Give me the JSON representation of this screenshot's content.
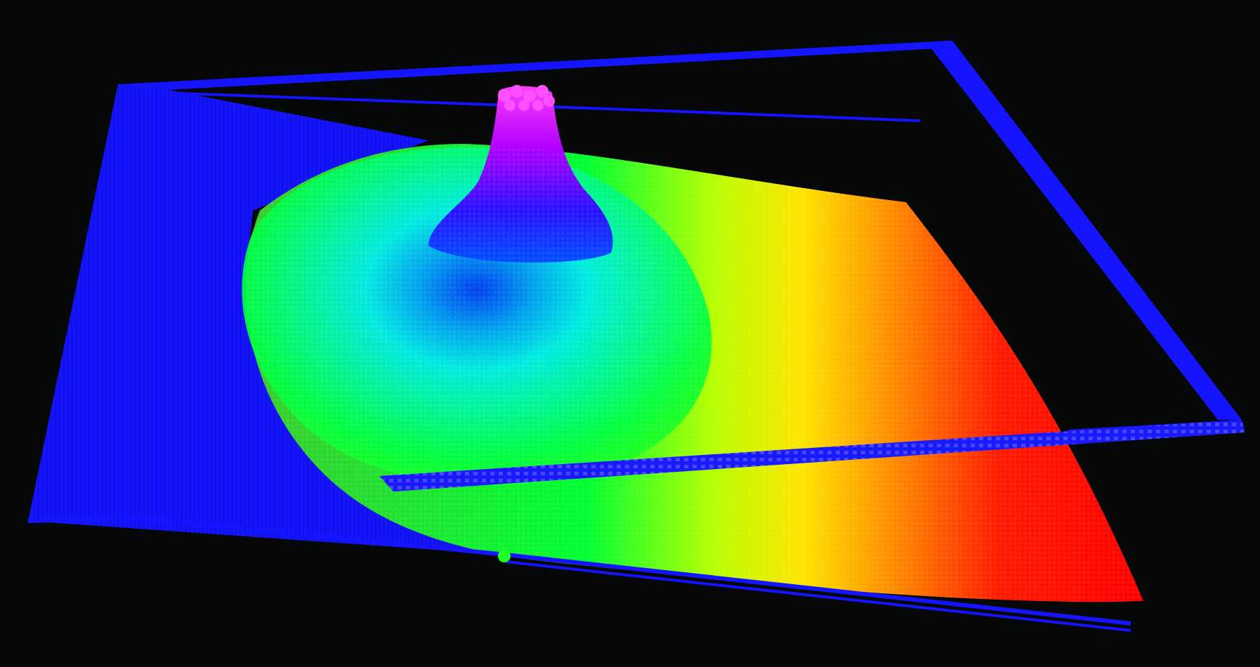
{
  "scene": {
    "background_color": "#060808",
    "frame_color": "#1010ff",
    "surface_colormap": [
      "#0000ff",
      "#00c8ff",
      "#00ff40",
      "#ffff00",
      "#ff0000"
    ],
    "peak_color": "#ff00ff"
  }
}
